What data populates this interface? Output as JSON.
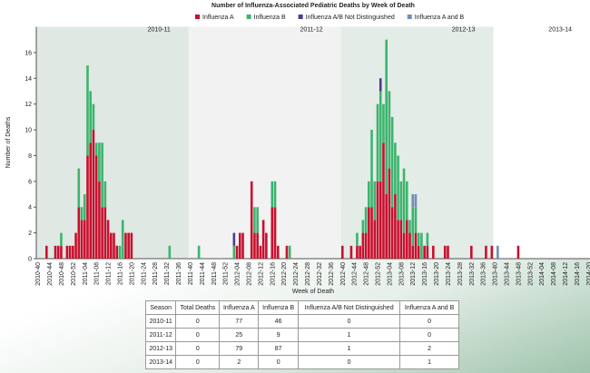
{
  "chart_data": {
    "type": "bar",
    "stacked": true,
    "title": "Number of Influenza-Associated Pediatric Deaths by Week of Death",
    "x_label": "Week of Death",
    "y_label": "Number of Deaths",
    "seasons": [
      "2010-11",
      "2011-12",
      "2012-13",
      "2013-14"
    ],
    "ylim": [
      0,
      18
    ],
    "yticks": [
      0,
      2,
      4,
      6,
      8,
      10,
      12,
      14,
      16
    ],
    "categories": [
      "2010-40",
      null,
      null,
      null,
      "2010-44",
      null,
      null,
      null,
      "2010-48",
      null,
      null,
      null,
      "2010-52",
      null,
      null,
      null,
      "2011-04",
      null,
      null,
      null,
      "2011-08",
      null,
      null,
      null,
      "2011-12",
      null,
      null,
      null,
      "2011-16",
      null,
      null,
      null,
      "2011-20",
      null,
      null,
      null,
      "2011-24",
      null,
      null,
      null,
      "2011-28",
      null,
      null,
      null,
      "2011-32",
      null,
      null,
      null,
      "2011-36",
      null,
      null,
      null,
      "2011-40",
      null,
      null,
      null,
      "2011-44",
      null,
      null,
      null,
      "2011-48",
      null,
      null,
      null,
      "2011-52",
      null,
      null,
      null,
      "2012-04",
      null,
      null,
      null,
      "2012-08",
      null,
      null,
      null,
      "2012-12",
      null,
      null,
      null,
      "2012-16",
      null,
      null,
      null,
      "2012-20",
      null,
      null,
      null,
      "2012-24",
      null,
      null,
      null,
      "2012-28",
      null,
      null,
      null,
      "2012-32",
      null,
      null,
      null,
      "2012-36",
      null,
      null,
      null,
      "2012-40",
      null,
      null,
      null,
      "2012-44",
      null,
      null,
      null,
      "2012-48",
      null,
      null,
      null,
      "2012-52",
      null,
      null,
      null,
      "2013-04",
      null,
      null,
      null,
      "2013-08",
      null,
      null,
      null,
      "2013-12",
      null,
      null,
      null,
      "2013-16",
      null,
      null,
      null,
      "2013-20",
      null,
      null,
      null,
      "2013-24",
      null,
      null,
      null,
      "2013-28",
      null,
      null,
      null,
      "2013-32",
      null,
      null,
      null,
      "2013-36",
      null,
      null,
      null,
      "2013-40",
      null,
      null,
      null,
      "2013-44",
      null,
      null,
      null,
      "2013-48",
      null,
      null,
      null,
      "2013-52",
      null,
      null,
      null,
      "2014-04",
      null,
      null,
      null,
      "2014-08",
      null,
      null,
      null,
      "2014-12",
      null,
      null,
      null,
      "2014-16",
      null,
      null,
      null,
      "2014-20"
    ],
    "series": [
      {
        "name": "Influenza A",
        "color": "#c8102e",
        "values": [
          0,
          0,
          0,
          1,
          0,
          0,
          1,
          1,
          1,
          0,
          1,
          1,
          1,
          2,
          4,
          3,
          3,
          8,
          9,
          10,
          8,
          6,
          4,
          4,
          3,
          2,
          2,
          1,
          0,
          0,
          2,
          2,
          2,
          0,
          0,
          0,
          0,
          0,
          0,
          0,
          0,
          0,
          0,
          0,
          0,
          0,
          0,
          0,
          0,
          0,
          0,
          0,
          0,
          0,
          0,
          0,
          0,
          0,
          0,
          0,
          0,
          0,
          0,
          0,
          0,
          0,
          0,
          0,
          1,
          2,
          2,
          0,
          0,
          6,
          2,
          2,
          1,
          3,
          2,
          0,
          4,
          4,
          1,
          0,
          0,
          1,
          0,
          0,
          0,
          0,
          0,
          0,
          0,
          0,
          0,
          0,
          0,
          0,
          0,
          0,
          0,
          0,
          0,
          0,
          1,
          0,
          0,
          1,
          0,
          1,
          1,
          2,
          2,
          4,
          4,
          3,
          6,
          6,
          9,
          5,
          7,
          4,
          5,
          3,
          3,
          2,
          3,
          2,
          1,
          2,
          1,
          0,
          1,
          1,
          0,
          1,
          0,
          0,
          0,
          1,
          1,
          0,
          0,
          0,
          0,
          0,
          0,
          0,
          1,
          0,
          0,
          0,
          0,
          1,
          0,
          1,
          0,
          0,
          0,
          0,
          0,
          0,
          0,
          0,
          1,
          0,
          0,
          0,
          0,
          0,
          0,
          0,
          0,
          0,
          0,
          0,
          0,
          0,
          0,
          0,
          0,
          0,
          0,
          0,
          0,
          0,
          0,
          0,
          0
        ]
      },
      {
        "name": "Influenza B",
        "color": "#3cb46e",
        "values": [
          0,
          0,
          0,
          0,
          0,
          0,
          0,
          0,
          1,
          0,
          0,
          0,
          0,
          0,
          3,
          1,
          2,
          7,
          4,
          2,
          1,
          3,
          5,
          2,
          0,
          0,
          0,
          0,
          1,
          3,
          0,
          0,
          0,
          0,
          0,
          0,
          0,
          0,
          0,
          0,
          0,
          0,
          0,
          0,
          0,
          1,
          0,
          0,
          0,
          0,
          0,
          0,
          0,
          0,
          0,
          1,
          0,
          0,
          0,
          0,
          0,
          0,
          0,
          0,
          0,
          0,
          0,
          1,
          0,
          0,
          0,
          0,
          0,
          0,
          2,
          2,
          0,
          0,
          0,
          0,
          2,
          2,
          0,
          0,
          0,
          0,
          1,
          0,
          0,
          0,
          0,
          0,
          0,
          0,
          0,
          0,
          0,
          0,
          0,
          0,
          0,
          0,
          0,
          0,
          0,
          0,
          0,
          0,
          0,
          1,
          0,
          1,
          2,
          2,
          6,
          3,
          6,
          7,
          3,
          12,
          6,
          7,
          4,
          5,
          3,
          5,
          3,
          1,
          3,
          2,
          1,
          2,
          0,
          1,
          0,
          0,
          0,
          0,
          0,
          0,
          0,
          0,
          0,
          0,
          0,
          0,
          0,
          0,
          0,
          0,
          0,
          0,
          0,
          0,
          0,
          0,
          0,
          0,
          0,
          0,
          0,
          0,
          0,
          0,
          0,
          0,
          0,
          0,
          0,
          0,
          0,
          0,
          0,
          0,
          0,
          0,
          0,
          0,
          0,
          0,
          0,
          0,
          0,
          0,
          0,
          0,
          0,
          0,
          0
        ]
      },
      {
        "name": "Influenza A/B Not Distinguished",
        "color": "#4a3c8c",
        "values": [
          0,
          0,
          0,
          0,
          0,
          0,
          0,
          0,
          0,
          0,
          0,
          0,
          0,
          0,
          0,
          0,
          0,
          0,
          0,
          0,
          0,
          0,
          0,
          0,
          0,
          0,
          0,
          0,
          0,
          0,
          0,
          0,
          0,
          0,
          0,
          0,
          0,
          0,
          0,
          0,
          0,
          0,
          0,
          0,
          0,
          0,
          0,
          0,
          0,
          0,
          0,
          0,
          0,
          0,
          0,
          0,
          0,
          0,
          0,
          0,
          0,
          0,
          0,
          0,
          0,
          0,
          0,
          1,
          0,
          0,
          0,
          0,
          0,
          0,
          0,
          0,
          0,
          0,
          0,
          0,
          0,
          0,
          0,
          0,
          0,
          0,
          0,
          0,
          0,
          0,
          0,
          0,
          0,
          0,
          0,
          0,
          0,
          0,
          0,
          0,
          0,
          0,
          0,
          0,
          0,
          0,
          0,
          0,
          0,
          0,
          0,
          0,
          0,
          0,
          0,
          0,
          0,
          1,
          0,
          0,
          0,
          0,
          0,
          0,
          0,
          0,
          0,
          0,
          0,
          0,
          0,
          0,
          0,
          0,
          0,
          0,
          0,
          0,
          0,
          0,
          0,
          0,
          0,
          0,
          0,
          0,
          0,
          0,
          0,
          0,
          0,
          0,
          0,
          0,
          0,
          0,
          0,
          0,
          0,
          0,
          0,
          0,
          0,
          0,
          0,
          0,
          0,
          0,
          0,
          0,
          0,
          0,
          0,
          0,
          0,
          0,
          0,
          0,
          0,
          0,
          0,
          0,
          0,
          0,
          0,
          0,
          0,
          0,
          0
        ]
      },
      {
        "name": "Influenza A and B",
        "color": "#6f8fb5",
        "values": [
          0,
          0,
          0,
          0,
          0,
          0,
          0,
          0,
          0,
          0,
          0,
          0,
          0,
          0,
          0,
          0,
          0,
          0,
          0,
          0,
          0,
          0,
          0,
          0,
          0,
          0,
          0,
          0,
          0,
          0,
          0,
          0,
          0,
          0,
          0,
          0,
          0,
          0,
          0,
          0,
          0,
          0,
          0,
          0,
          0,
          0,
          0,
          0,
          0,
          0,
          0,
          0,
          0,
          0,
          0,
          0,
          0,
          0,
          0,
          0,
          0,
          0,
          0,
          0,
          0,
          0,
          0,
          0,
          0,
          0,
          0,
          0,
          0,
          0,
          0,
          0,
          0,
          0,
          0,
          0,
          0,
          0,
          0,
          0,
          0,
          0,
          0,
          0,
          0,
          0,
          0,
          0,
          0,
          0,
          0,
          0,
          0,
          0,
          0,
          0,
          0,
          0,
          0,
          0,
          0,
          0,
          0,
          0,
          0,
          0,
          0,
          0,
          0,
          0,
          0,
          0,
          0,
          0,
          0,
          0,
          0,
          0,
          0,
          0,
          0,
          0,
          0,
          0,
          1,
          1,
          0,
          0,
          0,
          0,
          0,
          0,
          0,
          0,
          0,
          0,
          0,
          0,
          0,
          0,
          0,
          0,
          0,
          0,
          0,
          0,
          0,
          0,
          0,
          0,
          0,
          0,
          0,
          1,
          0,
          0,
          0,
          0,
          0,
          0,
          0,
          0,
          0,
          0,
          0,
          0,
          0,
          0,
          0,
          0,
          0,
          0,
          0,
          0,
          0,
          0,
          0,
          0,
          0,
          0,
          0,
          0,
          0,
          0,
          0
        ]
      }
    ]
  },
  "table": {
    "columns": [
      "Season",
      "Total Deaths",
      "Influenza A",
      "Influenza B",
      "Influenza A/B Not Distinguished",
      "Influenza A and B"
    ],
    "rows": [
      [
        "2010-11",
        0,
        77,
        46,
        0,
        0
      ],
      [
        "2011-12",
        0,
        25,
        9,
        1,
        0
      ],
      [
        "2012-13",
        0,
        79,
        87,
        1,
        2
      ],
      [
        "2013-14",
        0,
        2,
        0,
        0,
        1
      ]
    ]
  }
}
